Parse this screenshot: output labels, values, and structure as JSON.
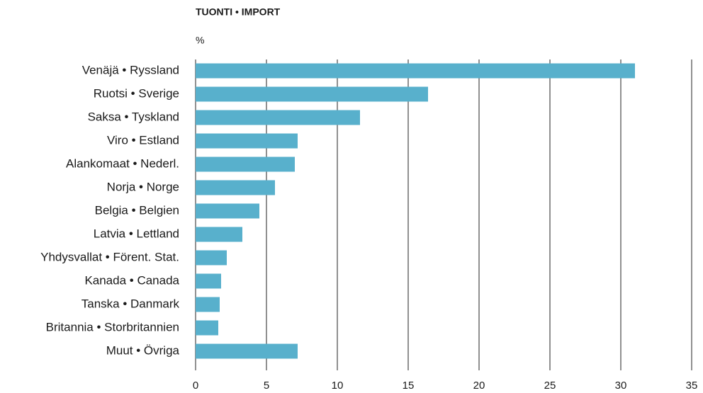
{
  "chart_data": {
    "type": "barh",
    "title": "TUONTI • IMPORT",
    "unit_label": "%",
    "categories": [
      "Venäjä • Ryssland",
      "Ruotsi • Sverige",
      "Saksa • Tyskland",
      "Viro • Estland",
      "Alankomaat • Nederl.",
      "Norja • Norge",
      "Belgia • Belgien",
      "Latvia • Lettland",
      "Yhdysvallat • Förent. Stat.",
      "Kanada • Canada",
      "Tanska • Danmark",
      "Britannia • Storbritannien",
      "Muut • Övriga"
    ],
    "values": [
      31,
      16.4,
      11.6,
      7.2,
      7.0,
      5.6,
      4.5,
      3.3,
      2.2,
      1.8,
      1.7,
      1.6,
      7.2
    ],
    "color": "#58b0cc",
    "xlim": [
      0,
      35
    ],
    "xticks": [
      0,
      5,
      10,
      15,
      20,
      25,
      30,
      35
    ],
    "grid": true
  }
}
